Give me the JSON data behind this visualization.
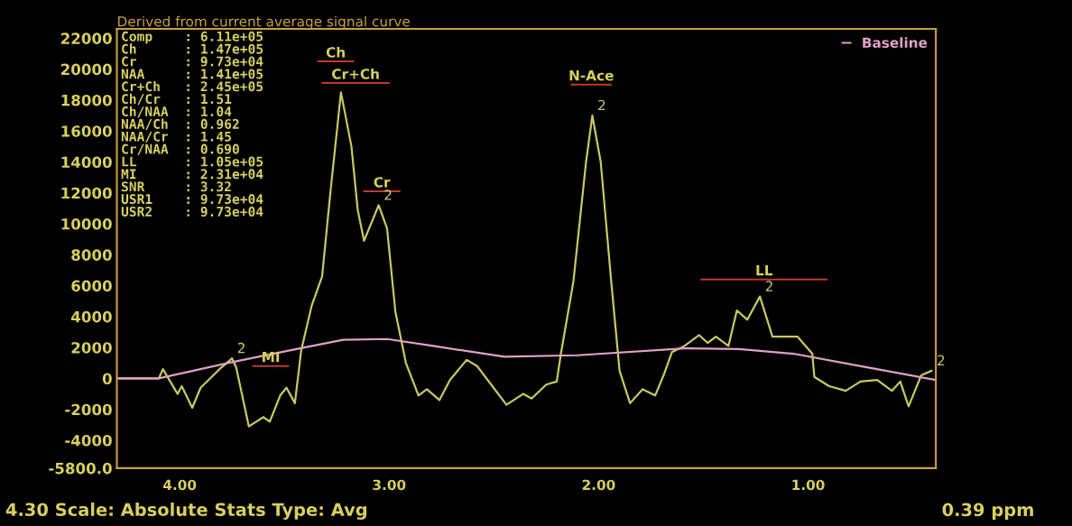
{
  "chart_data": {
    "type": "line",
    "title": "Derived from current average signal curve",
    "xlabel": "4.30 Scale: Absolute Stats Type: Avg",
    "xlim": [
      4.3,
      0.39
    ],
    "ylim": [
      -5800,
      22600
    ],
    "xticks": [
      {
        "value": 4,
        "label": "4.00"
      },
      {
        "value": 3,
        "label": "3.00"
      },
      {
        "value": 2,
        "label": "2.00"
      },
      {
        "value": 1,
        "label": "1.00"
      }
    ],
    "yticks": [
      {
        "value": -5800,
        "label": "-5800.0"
      },
      -4000,
      -2000,
      0,
      2000,
      4000,
      6000,
      8000,
      10000,
      12000,
      14000,
      16000,
      18000,
      20000,
      22000
    ],
    "grid": false,
    "legend": "top right",
    "marker": "none",
    "line_style": "solid",
    "series": [
      {
        "color": "#c8c864",
        "x": [
          4.3,
          4.1,
          4.08,
          4.01,
          3.99,
          3.94,
          3.9,
          3.81,
          3.75,
          3.73,
          3.67,
          3.6,
          3.57,
          3.52,
          3.49,
          3.45,
          3.42,
          3.37,
          3.32,
          3.28,
          3.23,
          3.18,
          3.15,
          3.12,
          3.05,
          3.01,
          2.97,
          2.92,
          2.86,
          2.82,
          2.76,
          2.71,
          2.63,
          2.58,
          2.44,
          2.36,
          2.32,
          2.25,
          2.2,
          2.18,
          2.12,
          2.06,
          2.03,
          1.99,
          1.94,
          1.9,
          1.85,
          1.79,
          1.73,
          1.69,
          1.65,
          1.59,
          1.52,
          1.48,
          1.44,
          1.38,
          1.34,
          1.29,
          1.23,
          1.17,
          1.05,
          0.98,
          0.97,
          0.9,
          0.82,
          0.75,
          0.67,
          0.6,
          0.56,
          0.52,
          0.46,
          0.41
        ],
        "values": [
          0,
          0,
          600,
          -1000,
          -500,
          -1900,
          -600,
          600,
          1300,
          700,
          -3100,
          -2500,
          -2800,
          -1100,
          -600,
          -1600,
          1800,
          4700,
          6600,
          12100,
          18500,
          15000,
          10900,
          8900,
          11200,
          9700,
          4300,
          1000,
          -1100,
          -700,
          -1400,
          -100,
          1200,
          800,
          -1700,
          -1000,
          -1300,
          -400,
          -200,
          1600,
          6300,
          14000,
          17000,
          14000,
          6300,
          500,
          -1600,
          -700,
          -1100,
          200,
          1700,
          2100,
          2800,
          2300,
          2700,
          2100,
          4400,
          3800,
          5300,
          2700,
          2700,
          1600,
          100,
          -500,
          -800,
          -200,
          -100,
          -800,
          -200,
          -1800,
          200,
          500
        ]
      },
      {
        "name": "Baseline",
        "color": "#e0a0c8",
        "x": [
          4.3,
          4.1,
          3.75,
          3.48,
          3.22,
          3.01,
          2.79,
          2.45,
          2.1,
          1.59,
          1.33,
          1.07,
          0.73,
          0.39
        ],
        "values": [
          0,
          0,
          1050,
          1800,
          2500,
          2550,
          2100,
          1400,
          1500,
          1950,
          1900,
          1600,
          750,
          -100
        ]
      },
      {
        "name": "Ch",
        "color": "#c03a2b",
        "x": [
          3.34,
          3.17
        ],
        "values": [
          20500,
          20500
        ]
      },
      {
        "name": "Cr+Ch",
        "color": "#c03a2b",
        "x": [
          3.32,
          3.0
        ],
        "values": [
          19100,
          19100
        ]
      },
      {
        "name": "Cr",
        "color": "#c03a2b",
        "x": [
          3.12,
          2.95
        ],
        "values": [
          12100,
          12100
        ]
      },
      {
        "name": "N-Ace",
        "color": "#c03a2b",
        "x": [
          2.13,
          1.94
        ],
        "values": [
          19000,
          19000
        ]
      },
      {
        "name": "LL",
        "color": "#c03a2b",
        "x": [
          1.51,
          0.91
        ],
        "values": [
          6400,
          6400
        ]
      },
      {
        "name": "MI",
        "color": "#c03a2b",
        "x": [
          3.65,
          3.48
        ],
        "values": [
          800,
          800
        ]
      }
    ],
    "annotations": [
      {
        "text": "2",
        "x": 3.75,
        "y": 1300
      },
      {
        "text": "2",
        "x": 3.05,
        "y": 11200
      },
      {
        "text": "2",
        "x": 2.03,
        "y": 17000
      },
      {
        "text": "2",
        "x": 1.23,
        "y": 5300
      },
      {
        "text": "2",
        "x": 0.41,
        "y": 500
      },
      "Comp    : 6.11e+05",
      "Ch      : 1.47e+05",
      "Cr      : 9.73e+04",
      "NAA     : 1.41e+05",
      "Cr+Ch   : 2.45e+05",
      "Ch/Cr   : 1.51",
      "Ch/NAA  : 1.04",
      "NAA/Ch  : 0.962",
      "NAA/Cr  : 1.45",
      "Cr/NAA  : 0.690",
      "LL      : 1.05e+05",
      "MI      : 2.31e+04",
      "SNR     : 3.32",
      "USR1    : 9.73e+04",
      "USR2    : 9.73e+04",
      "0.39 ppm"
    ]
  }
}
